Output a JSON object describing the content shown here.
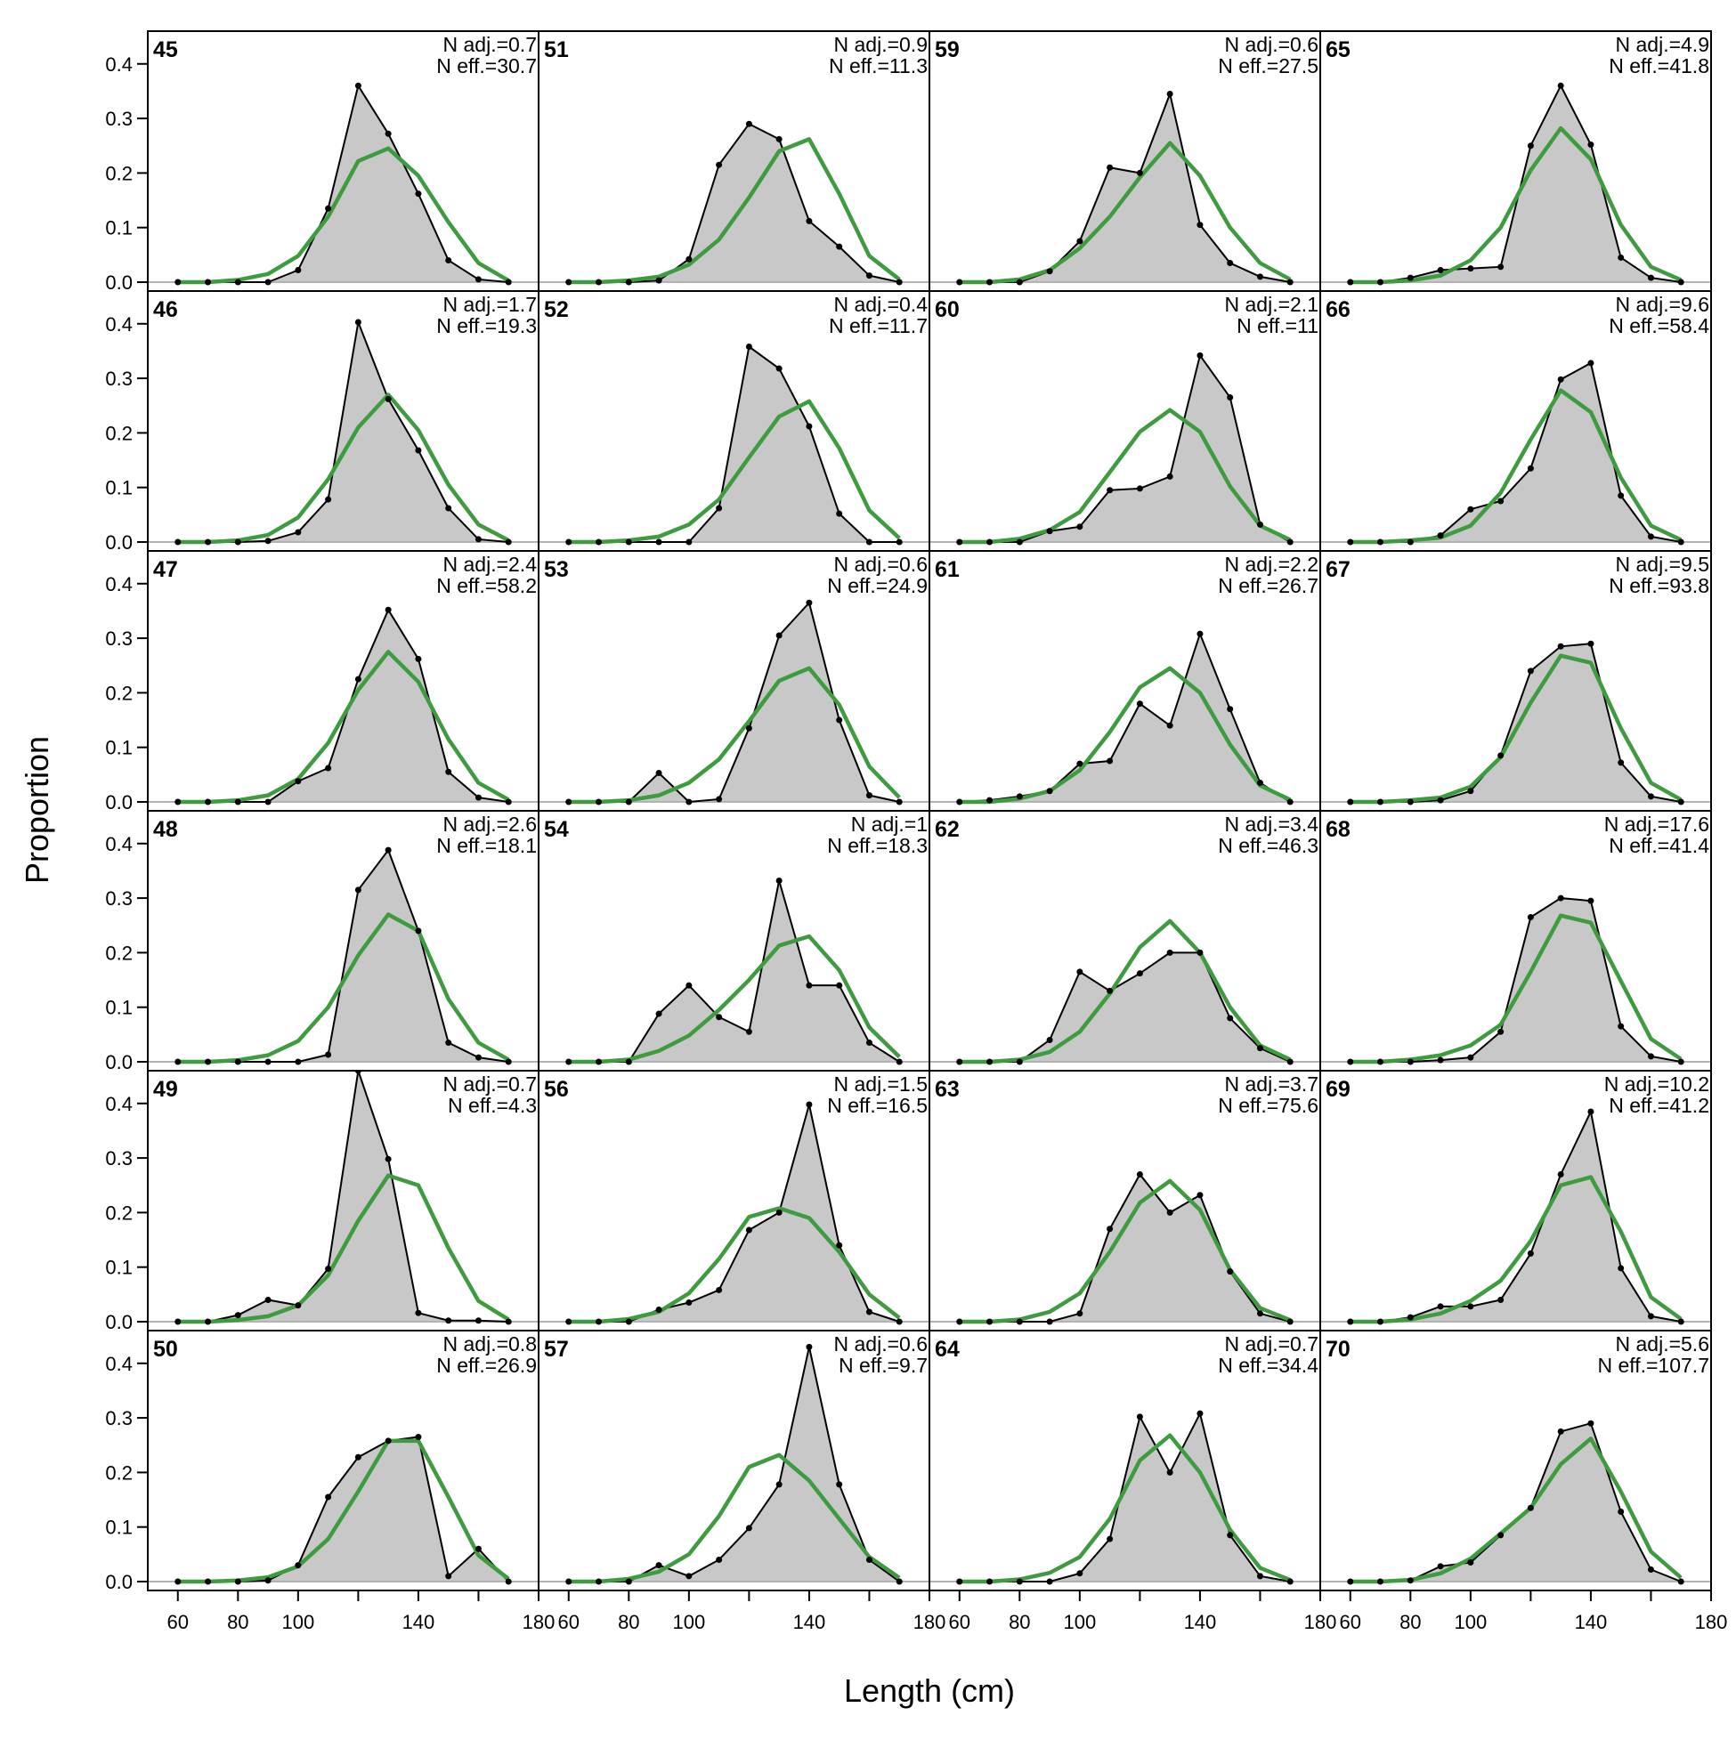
{
  "chart_data": {
    "type": "area",
    "xlabel": "Length (cm)",
    "ylabel": "Proportion",
    "x": [
      60,
      70,
      80,
      90,
      100,
      110,
      120,
      130,
      140,
      150,
      160,
      170
    ],
    "xlim": [
      50,
      180
    ],
    "ylim": [
      0,
      0.46
    ],
    "x_ticks": [
      60,
      80,
      100,
      140,
      180
    ],
    "x_tick_labels": [
      "60",
      "80",
      "100",
      "140",
      "180"
    ],
    "y_ticks": [
      0.0,
      0.1,
      0.2,
      0.3,
      0.4
    ],
    "y_tick_labels": [
      "0.0",
      "0.1",
      "0.2",
      "0.3",
      "0.4"
    ],
    "grid": false,
    "layout": "4 columns x 6 rows, panels filled column-wise",
    "colors": {
      "observed_fill": "#c8c8c8",
      "observed_line": "#000000",
      "expected_line": "#3f9b3f",
      "zero_line": "#b3b3b3"
    },
    "panels": [
      {
        "label": "45",
        "n_adj": "N adj.=0.7",
        "n_eff": "N eff.=30.7",
        "observed": [
          0,
          0,
          0,
          0,
          0.022,
          0.135,
          0.36,
          0.272,
          0.162,
          0.04,
          0.005,
          0
        ],
        "expected": [
          0,
          0,
          0.004,
          0.015,
          0.048,
          0.12,
          0.222,
          0.245,
          0.195,
          0.11,
          0.035,
          0.003
        ]
      },
      {
        "label": "46",
        "n_adj": "N adj.=1.7",
        "n_eff": "N eff.=19.3",
        "observed": [
          0,
          0,
          0,
          0.002,
          0.018,
          0.078,
          0.403,
          0.262,
          0.168,
          0.062,
          0.005,
          0
        ],
        "expected": [
          0,
          0,
          0.003,
          0.013,
          0.045,
          0.115,
          0.21,
          0.27,
          0.205,
          0.105,
          0.032,
          0.003
        ]
      },
      {
        "label": "47",
        "n_adj": "N adj.=2.4",
        "n_eff": "N eff.=58.2",
        "observed": [
          0,
          0,
          0,
          0,
          0.038,
          0.062,
          0.225,
          0.352,
          0.262,
          0.055,
          0.008,
          0
        ],
        "expected": [
          0,
          0,
          0.003,
          0.012,
          0.042,
          0.108,
          0.205,
          0.275,
          0.22,
          0.115,
          0.035,
          0.004
        ]
      },
      {
        "label": "48",
        "n_adj": "N adj.=2.6",
        "n_eff": "N eff.=18.1",
        "observed": [
          0,
          0,
          0,
          0,
          0,
          0.013,
          0.315,
          0.388,
          0.24,
          0.035,
          0.008,
          0
        ],
        "expected": [
          0,
          0,
          0.003,
          0.012,
          0.038,
          0.1,
          0.195,
          0.27,
          0.24,
          0.115,
          0.035,
          0.004
        ]
      },
      {
        "label": "49",
        "n_adj": "N adj.=0.7",
        "n_eff": "N eff.=4.3",
        "observed": [
          0,
          0,
          0.012,
          0.04,
          0.03,
          0.097,
          0.46,
          0.298,
          0.016,
          0.002,
          0.002,
          0
        ],
        "expected": [
          0,
          0,
          0.003,
          0.01,
          0.03,
          0.085,
          0.185,
          0.268,
          0.25,
          0.135,
          0.038,
          0.004
        ]
      },
      {
        "label": "50",
        "n_adj": "N adj.=0.8",
        "n_eff": "N eff.=26.9",
        "observed": [
          0,
          0,
          0,
          0.002,
          0.03,
          0.155,
          0.228,
          0.258,
          0.265,
          0.01,
          0.06,
          0
        ],
        "expected": [
          0,
          0,
          0.002,
          0.008,
          0.028,
          0.078,
          0.165,
          0.258,
          0.258,
          0.155,
          0.048,
          0.005
        ]
      },
      {
        "label": "51",
        "n_adj": "N adj.=0.9",
        "n_eff": "N eff.=11.3",
        "observed": [
          0,
          0,
          0,
          0.003,
          0.042,
          0.215,
          0.29,
          0.262,
          0.112,
          0.065,
          0.012,
          0
        ],
        "expected": [
          0,
          0,
          0.003,
          0.01,
          0.032,
          0.078,
          0.155,
          0.24,
          0.262,
          0.162,
          0.048,
          0.005
        ]
      },
      {
        "label": "52",
        "n_adj": "N adj.=0.4",
        "n_eff": "N eff.=11.7",
        "observed": [
          0,
          0,
          0,
          0,
          0,
          0.062,
          0.358,
          0.318,
          0.212,
          0.052,
          0,
          0
        ],
        "expected": [
          0,
          0,
          0.003,
          0.01,
          0.032,
          0.078,
          0.155,
          0.23,
          0.258,
          0.172,
          0.058,
          0.007
        ]
      },
      {
        "label": "53",
        "n_adj": "N adj.=0.6",
        "n_eff": "N eff.=24.9",
        "observed": [
          0,
          0,
          0,
          0.053,
          0,
          0.005,
          0.135,
          0.305,
          0.365,
          0.15,
          0.012,
          0
        ],
        "expected": [
          0,
          0,
          0.003,
          0.012,
          0.035,
          0.078,
          0.148,
          0.222,
          0.245,
          0.178,
          0.065,
          0.008
        ]
      },
      {
        "label": "54",
        "n_adj": "N adj.=1",
        "n_eff": "N eff.=18.3",
        "observed": [
          0,
          0,
          0,
          0.088,
          0.14,
          0.082,
          0.055,
          0.332,
          0.14,
          0.14,
          0.035,
          0
        ],
        "expected": [
          0,
          0,
          0.004,
          0.02,
          0.048,
          0.095,
          0.15,
          0.213,
          0.23,
          0.168,
          0.063,
          0.009
        ]
      },
      {
        "label": "56",
        "n_adj": "N adj.=1.5",
        "n_eff": "N eff.=16.5",
        "observed": [
          0,
          0,
          0,
          0.022,
          0.035,
          0.058,
          0.168,
          0.2,
          0.398,
          0.14,
          0.018,
          0
        ],
        "expected": [
          0,
          0,
          0.005,
          0.018,
          0.052,
          0.115,
          0.192,
          0.208,
          0.19,
          0.128,
          0.05,
          0.007
        ]
      },
      {
        "label": "57",
        "n_adj": "N adj.=0.6",
        "n_eff": "N eff.=9.7",
        "observed": [
          0,
          0,
          0,
          0.03,
          0.01,
          0.04,
          0.098,
          0.178,
          0.43,
          0.178,
          0.04,
          0
        ],
        "expected": [
          0,
          0,
          0.005,
          0.018,
          0.05,
          0.12,
          0.21,
          0.232,
          0.185,
          0.115,
          0.045,
          0.007
        ]
      },
      {
        "label": "59",
        "n_adj": "N adj.=0.6",
        "n_eff": "N eff.=27.5",
        "observed": [
          0,
          0,
          0,
          0.02,
          0.075,
          0.21,
          0.2,
          0.345,
          0.105,
          0.035,
          0.01,
          0
        ],
        "expected": [
          0,
          0,
          0.005,
          0.022,
          0.062,
          0.12,
          0.192,
          0.255,
          0.195,
          0.1,
          0.035,
          0.005
        ]
      },
      {
        "label": "60",
        "n_adj": "N adj.=2.1",
        "n_eff": "N eff.=11",
        "observed": [
          0,
          0,
          0,
          0.02,
          0.028,
          0.095,
          0.098,
          0.12,
          0.342,
          0.265,
          0.032,
          0
        ],
        "expected": [
          0,
          0,
          0.006,
          0.022,
          0.055,
          0.128,
          0.202,
          0.242,
          0.202,
          0.102,
          0.03,
          0.004
        ]
      },
      {
        "label": "61",
        "n_adj": "N adj.=2.2",
        "n_eff": "N eff.=26.7",
        "observed": [
          0,
          0.003,
          0.01,
          0.02,
          0.07,
          0.075,
          0.18,
          0.14,
          0.308,
          0.17,
          0.035,
          0
        ],
        "expected": [
          0,
          0,
          0.006,
          0.02,
          0.058,
          0.128,
          0.21,
          0.245,
          0.2,
          0.105,
          0.03,
          0.004
        ]
      },
      {
        "label": "62",
        "n_adj": "N adj.=3.4",
        "n_eff": "N eff.=46.3",
        "observed": [
          0,
          0,
          0,
          0.04,
          0.165,
          0.13,
          0.162,
          0.2,
          0.2,
          0.08,
          0.025,
          0
        ],
        "expected": [
          0,
          0,
          0.004,
          0.018,
          0.055,
          0.125,
          0.21,
          0.258,
          0.2,
          0.1,
          0.03,
          0.004
        ]
      },
      {
        "label": "63",
        "n_adj": "N adj.=3.7",
        "n_eff": "N eff.=75.6",
        "observed": [
          0,
          0,
          0,
          0,
          0.015,
          0.17,
          0.27,
          0.2,
          0.232,
          0.092,
          0.015,
          0
        ],
        "expected": [
          0,
          0,
          0.004,
          0.018,
          0.052,
          0.128,
          0.218,
          0.258,
          0.205,
          0.095,
          0.025,
          0.003
        ]
      },
      {
        "label": "64",
        "n_adj": "N adj.=0.7",
        "n_eff": "N eff.=34.4",
        "observed": [
          0,
          0,
          0,
          0,
          0.015,
          0.078,
          0.302,
          0.2,
          0.308,
          0.085,
          0.01,
          0
        ],
        "expected": [
          0,
          0,
          0.004,
          0.016,
          0.045,
          0.115,
          0.222,
          0.268,
          0.2,
          0.095,
          0.025,
          0.003
        ]
      },
      {
        "label": "65",
        "n_adj": "N adj.=4.9",
        "n_eff": "N eff.=41.8",
        "observed": [
          0,
          0,
          0.008,
          0.022,
          0.025,
          0.028,
          0.25,
          0.36,
          0.252,
          0.045,
          0.008,
          0
        ],
        "expected": [
          0,
          0,
          0.003,
          0.012,
          0.04,
          0.1,
          0.205,
          0.282,
          0.225,
          0.105,
          0.028,
          0.004
        ]
      },
      {
        "label": "66",
        "n_adj": "N adj.=9.6",
        "n_eff": "N eff.=58.4",
        "observed": [
          0,
          0,
          0,
          0.012,
          0.06,
          0.075,
          0.135,
          0.298,
          0.328,
          0.085,
          0.01,
          0
        ],
        "expected": [
          0,
          0,
          0.003,
          0.008,
          0.03,
          0.09,
          0.188,
          0.278,
          0.238,
          0.118,
          0.03,
          0.004
        ]
      },
      {
        "label": "67",
        "n_adj": "N adj.=9.5",
        "n_eff": "N eff.=93.8",
        "observed": [
          0,
          0,
          0,
          0.003,
          0.02,
          0.085,
          0.24,
          0.285,
          0.29,
          0.072,
          0.01,
          0
        ],
        "expected": [
          0,
          0,
          0.003,
          0.008,
          0.028,
          0.082,
          0.182,
          0.268,
          0.255,
          0.135,
          0.035,
          0.004
        ]
      },
      {
        "label": "68",
        "n_adj": "N adj.=17.6",
        "n_eff": "N eff.=41.4",
        "observed": [
          0,
          0,
          0,
          0.003,
          0.008,
          0.055,
          0.265,
          0.3,
          0.295,
          0.065,
          0.01,
          0
        ],
        "expected": [
          0,
          0,
          0.004,
          0.012,
          0.03,
          0.068,
          0.165,
          0.268,
          0.255,
          0.148,
          0.042,
          0.005
        ]
      },
      {
        "label": "69",
        "n_adj": "N adj.=10.2",
        "n_eff": "N eff.=41.2",
        "observed": [
          0,
          0,
          0.008,
          0.028,
          0.028,
          0.04,
          0.125,
          0.27,
          0.385,
          0.098,
          0.01,
          0
        ],
        "expected": [
          0,
          0,
          0.004,
          0.015,
          0.038,
          0.075,
          0.148,
          0.25,
          0.265,
          0.165,
          0.045,
          0.005
        ]
      },
      {
        "label": "70",
        "n_adj": "N adj.=5.6",
        "n_eff": "N eff.=107.7",
        "observed": [
          0,
          0,
          0.002,
          0.028,
          0.035,
          0.085,
          0.135,
          0.275,
          0.29,
          0.128,
          0.022,
          0
        ],
        "expected": [
          0,
          0,
          0.003,
          0.015,
          0.042,
          0.088,
          0.135,
          0.215,
          0.262,
          0.165,
          0.055,
          0.007
        ]
      }
    ]
  }
}
